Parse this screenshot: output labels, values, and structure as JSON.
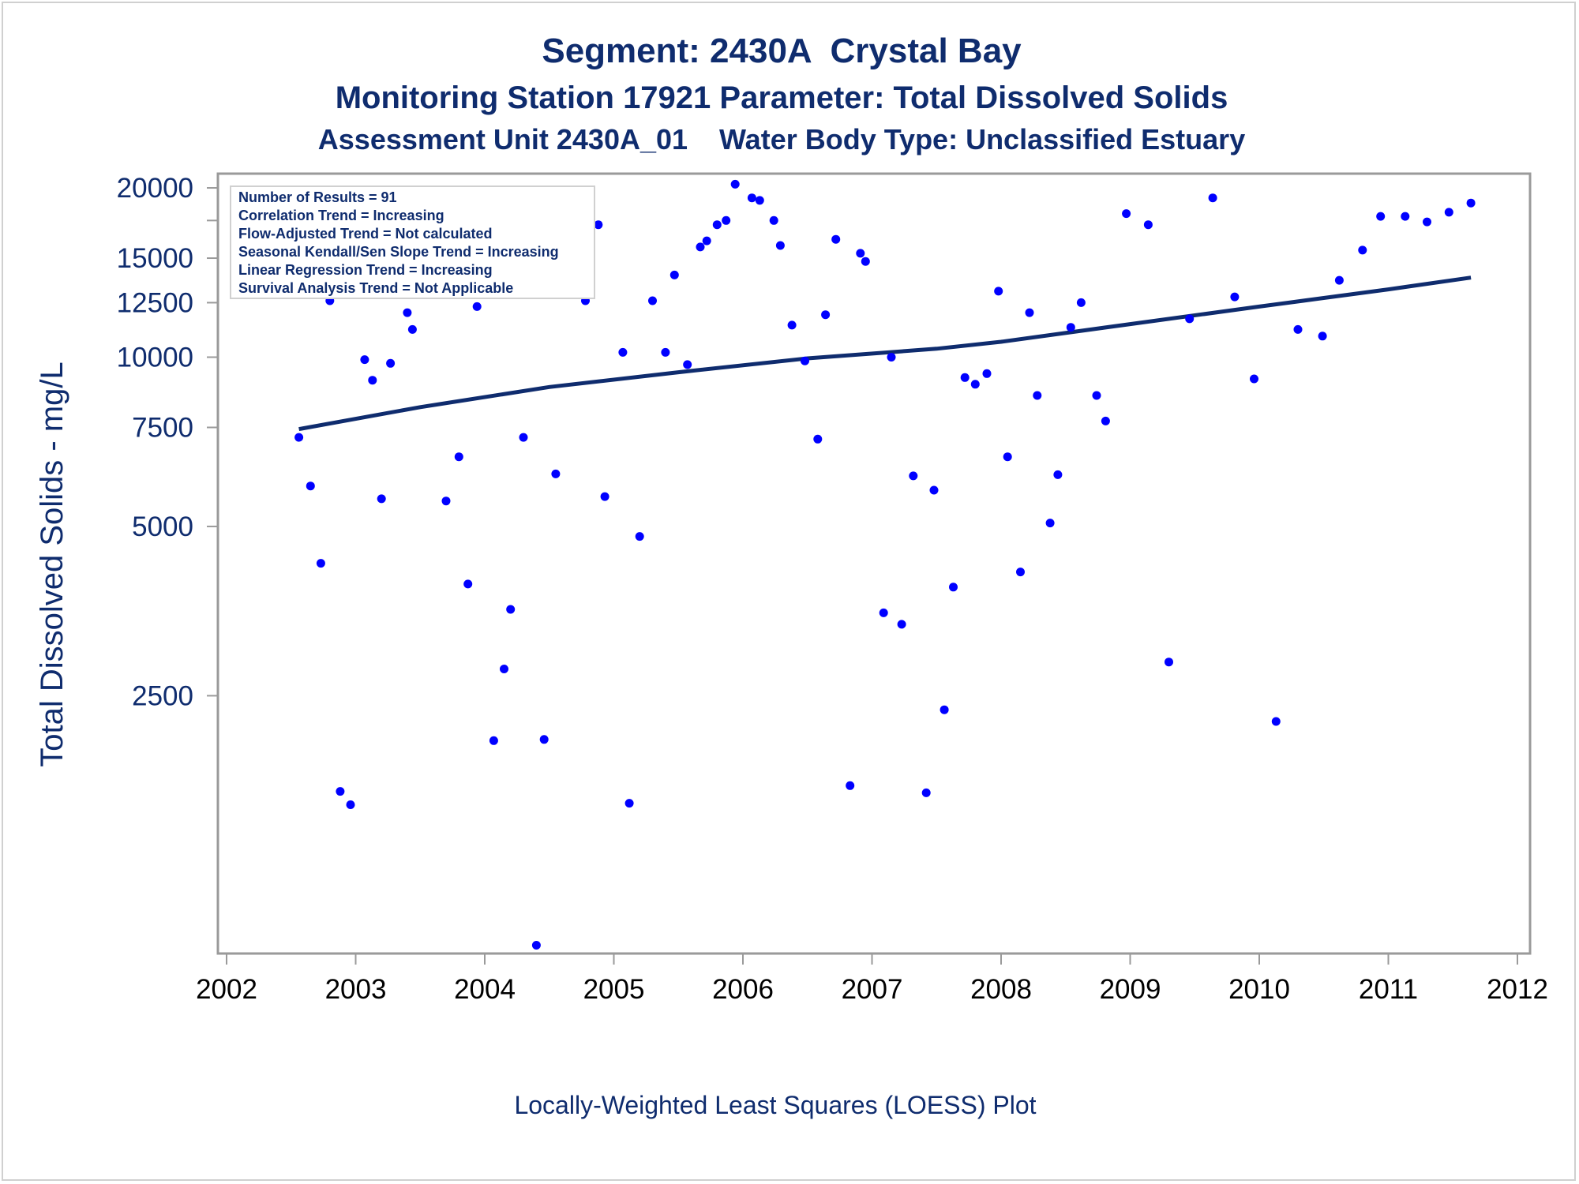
{
  "chart_data": {
    "type": "scatter",
    "title": "Segment: 2430A  Crystal Bay",
    "subtitle": "Monitoring Station 17921 Parameter: Total Dissolved Solids",
    "subtitle2": "Assessment Unit 2430A_01    Water Body Type: Unclassified Estuary",
    "ylabel": "Total Dissolved Solids - mg/L",
    "xlabel": "",
    "footnote": "Locally-Weighted Least Squares (LOESS) Plot",
    "y_scale": "log",
    "xlim": [
      2002,
      2012
    ],
    "ylim": [
      870,
      21200
    ],
    "x_ticks": [
      "2002",
      "2003",
      "2004",
      "2005",
      "2006",
      "2007",
      "2008",
      "2009",
      "2010",
      "2011",
      "2012"
    ],
    "y_ticks": [
      "2500",
      "5000",
      "7500",
      "10000",
      "12500",
      "15000",
      "20000"
    ],
    "y_tick_values": [
      2500,
      5000,
      7500,
      10000,
      12500,
      15000,
      20000
    ],
    "y_minor_ticks": [
      17500
    ],
    "inset_lines": [
      "Number of Results = 91",
      "Correlation Trend = Increasing",
      "Flow-Adjusted Trend = Not calculated",
      "Seasonal Kendall/Sen Slope Trend = Increasing",
      "Linear Regression Trend = Increasing",
      "Survival Analysis Trend = Not Applicable"
    ],
    "colors": {
      "points": "#0000ff",
      "line": "#0f2c6e",
      "text": "#0f2c6e",
      "frame": "#9a9a9a"
    },
    "series": [
      {
        "kind": "points",
        "x": [
          2002.56,
          2002.65,
          2002.73,
          2002.8,
          2002.88,
          2002.96,
          2003.07,
          2003.13,
          2003.2,
          2003.27,
          2003.4,
          2003.44,
          2003.62,
          2003.7,
          2003.8,
          2003.87,
          2003.94,
          2004.07,
          2004.15,
          2004.2,
          2004.3,
          2004.4,
          2004.46,
          2004.55,
          2004.62,
          2004.78,
          2004.88,
          2004.93,
          2005.07,
          2005.12,
          2005.2,
          2005.3,
          2005.4,
          2005.47,
          2005.57,
          2005.67,
          2005.72,
          2005.8,
          2005.87,
          2005.94,
          2006.07,
          2006.13,
          2006.24,
          2006.29,
          2006.38,
          2006.48,
          2006.58,
          2006.64,
          2006.72,
          2006.83,
          2006.91,
          2006.95,
          2007.09,
          2007.15,
          2007.23,
          2007.32,
          2007.42,
          2007.48,
          2007.56,
          2007.63,
          2007.72,
          2007.8,
          2007.89,
          2007.98,
          2008.05,
          2008.15,
          2008.22,
          2008.28,
          2008.38,
          2008.44,
          2008.54,
          2008.62,
          2008.74,
          2008.81,
          2008.97,
          2009.14,
          2009.3,
          2009.46,
          2009.64,
          2009.81,
          2009.96,
          2010.13,
          2010.3,
          2010.49,
          2010.62,
          2010.8,
          2010.94,
          2011.13,
          2011.3,
          2011.47,
          2011.64
        ],
        "y": [
          7200,
          5900,
          4300,
          12600,
          1690,
          1600,
          9900,
          9100,
          5600,
          9750,
          12000,
          11200,
          15400,
          5550,
          6650,
          3950,
          12300,
          2080,
          2790,
          3560,
          7200,
          900,
          2090,
          6200,
          14900,
          12600,
          17200,
          5650,
          10200,
          1610,
          4800,
          12600,
          10200,
          14000,
          9700,
          15700,
          16100,
          17200,
          17500,
          20300,
          19200,
          19000,
          17500,
          15800,
          11400,
          9850,
          7150,
          11900,
          16200,
          1730,
          15300,
          14800,
          3510,
          10000,
          3350,
          6150,
          1680,
          5800,
          2360,
          3900,
          9200,
          8950,
          9350,
          13100,
          6650,
          4150,
          12000,
          8550,
          5070,
          6180,
          11300,
          12500,
          8550,
          7700,
          18000,
          17200,
          2870,
          11700,
          19200,
          12800,
          9150,
          2250,
          11200,
          10900,
          13700,
          15500,
          17800,
          17800,
          17400,
          18100,
          18800
        ]
      },
      {
        "kind": "line",
        "name": "",
        "x": [
          2002.56,
          2003.5,
          2004.5,
          2005.5,
          2006.5,
          2007.5,
          2008.0,
          2009.0,
          2010.0,
          2011.0,
          2011.64
        ],
        "y": [
          7450,
          8150,
          8850,
          9400,
          9950,
          10350,
          10650,
          11450,
          12300,
          13200,
          13850
        ]
      }
    ]
  }
}
